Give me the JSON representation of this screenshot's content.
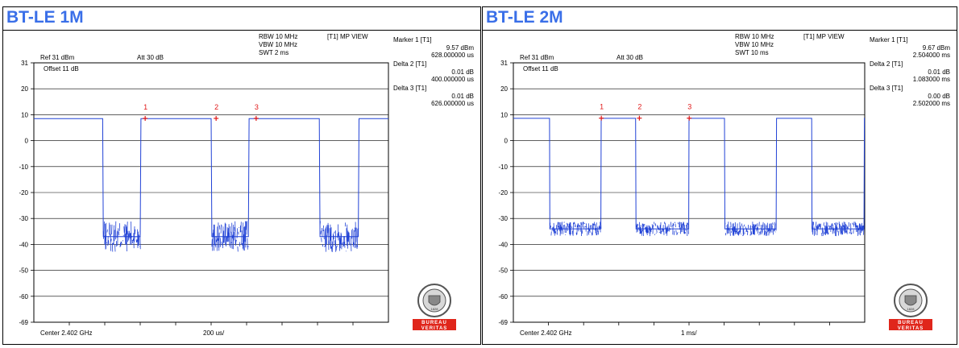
{
  "panels": [
    {
      "title": "BT-LE 1M",
      "header": {
        "rbw": "RBW 10 MHz",
        "vbw": "VBW 10 MHz",
        "swt": "SWT 2 ms",
        "view": "[T1] MP VIEW",
        "ref": "Ref 31 dBm",
        "att": "Att  30 dB",
        "offset": "Offset 11 dB",
        "center": "Center 2.402 GHz",
        "span": "200 us/"
      },
      "markers_info": [
        {
          "label": "Marker 1 [T1]",
          "v1": "9.57 dBm",
          "v2": "628.000000 us"
        },
        {
          "label": "Delta 2 [T1]",
          "v1": "0.01 dB",
          "v2": "400.000000 us"
        },
        {
          "label": "Delta 3 [T1]",
          "v1": "0.01 dB",
          "v2": "626.000000 us"
        }
      ],
      "marker_ids": [
        "1",
        "2",
        "3"
      ],
      "y_ticks": [
        "31",
        "20",
        "10",
        "0",
        "-10",
        "-20",
        "-30",
        "-40",
        "-50",
        "-60",
        "-69"
      ],
      "logo": {
        "top_text": "BUREAU VERITAS",
        "year": "1828",
        "band_top": "BUREAU",
        "band_bottom": "VERITAS",
        "band_color": "#e0261b"
      }
    },
    {
      "title": "BT-LE 2M",
      "header": {
        "rbw": "RBW 10 MHz",
        "vbw": "VBW 10 MHz",
        "swt": "SWT 10 ms",
        "view": "[T1] MP VIEW",
        "ref": "Ref 31 dBm",
        "att": "Att  30 dB",
        "offset": "Offset 11 dB",
        "center": "Center 2.402 GHz",
        "span": "1 ms/"
      },
      "markers_info": [
        {
          "label": "Marker 1 [T1]",
          "v1": "9.67 dBm",
          "v2": "2.504000 ms"
        },
        {
          "label": "Delta 2 [T1]",
          "v1": "0.01 dB",
          "v2": "1.083000 ms"
        },
        {
          "label": "Delta 3 [T1]",
          "v1": "0.00 dB",
          "v2": "2.502000 ms"
        }
      ],
      "marker_ids": [
        "1",
        "2",
        "3"
      ],
      "y_ticks": [
        "31",
        "20",
        "10",
        "0",
        "-10",
        "-20",
        "-30",
        "-40",
        "-50",
        "-60",
        "-69"
      ],
      "logo": {
        "top_text": "BUREAU VERITAS",
        "year": "1828",
        "band_top": "BUREAU",
        "band_bottom": "VERITAS",
        "band_color": "#e0261b"
      }
    }
  ],
  "chart_data": [
    {
      "type": "line",
      "title": "BT-LE 1M",
      "xlabel": "",
      "ylabel": "",
      "x_unit": "ms",
      "xlim": [
        0,
        2
      ],
      "ylim": [
        -69,
        31
      ],
      "trace_color": "#2142d6",
      "grid": true,
      "series": [
        {
          "x": [
            0,
            0.388,
            0.392,
            0.6,
            0.604,
            1.0,
            1.004,
            1.21,
            1.214,
            1.61,
            1.614,
            1.83,
            1.834,
            2.0
          ],
          "y": [
            9.5,
            9.5,
            -36,
            -36,
            9.5,
            9.5,
            -36,
            -36,
            9.5,
            9.5,
            -36,
            -36,
            9.5,
            9.5
          ]
        }
      ],
      "markers": [
        {
          "id": "1",
          "x": 0.628,
          "y": 9.57
        },
        {
          "id": "2",
          "x": 1.028,
          "y": 9.58
        },
        {
          "id": "3",
          "x": 1.254,
          "y": 9.58
        }
      ]
    },
    {
      "type": "line",
      "title": "BT-LE 2M",
      "xlabel": "",
      "ylabel": "",
      "x_unit": "ms",
      "xlim": [
        0,
        10
      ],
      "ylim": [
        -69,
        31
      ],
      "trace_color": "#2142d6",
      "grid": true,
      "series": [
        {
          "x": [
            0,
            1.03,
            1.04,
            2.49,
            2.5,
            3.48,
            3.49,
            4.99,
            5.0,
            6.01,
            6.02,
            7.48,
            7.49,
            8.49,
            8.5,
            9.98,
            9.99,
            10.0
          ],
          "y": [
            9.6,
            9.6,
            -33,
            -33,
            9.6,
            9.6,
            -33,
            -33,
            9.6,
            9.6,
            -33,
            -33,
            9.6,
            9.6,
            -33,
            -33,
            9.6,
            9.6
          ]
        }
      ],
      "markers": [
        {
          "id": "1",
          "x": 2.504,
          "y": 9.67
        },
        {
          "id": "2",
          "x": 3.587,
          "y": 9.68
        },
        {
          "id": "3",
          "x": 5.006,
          "y": 9.67
        }
      ]
    }
  ]
}
